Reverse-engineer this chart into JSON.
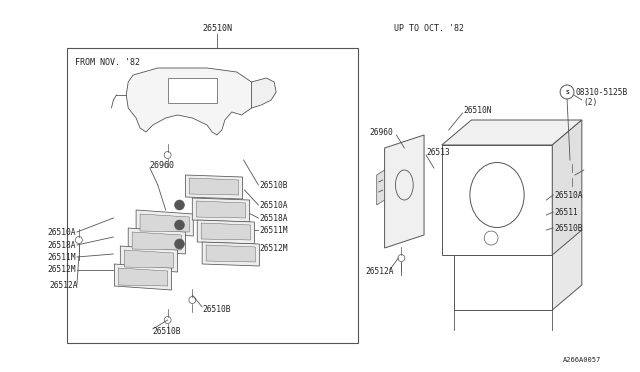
{
  "bg_color": "#ffffff",
  "line_color": "#555555",
  "text_color": "#222222",
  "watermark": "A266A0057",
  "left_box_label": "FROM NOV. '82",
  "right_header": "UP TO OCT. '82",
  "top_label": "26510N"
}
